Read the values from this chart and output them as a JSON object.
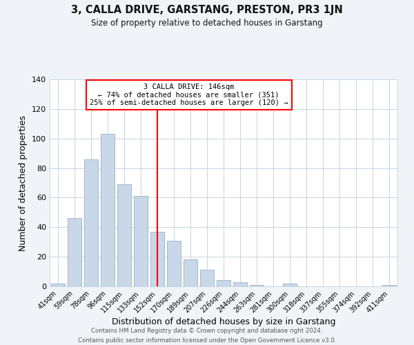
{
  "title": "3, CALLA DRIVE, GARSTANG, PRESTON, PR3 1JN",
  "subtitle": "Size of property relative to detached houses in Garstang",
  "xlabel": "Distribution of detached houses by size in Garstang",
  "ylabel": "Number of detached properties",
  "bar_labels": [
    "41sqm",
    "59sqm",
    "78sqm",
    "96sqm",
    "115sqm",
    "133sqm",
    "152sqm",
    "170sqm",
    "189sqm",
    "207sqm",
    "226sqm",
    "244sqm",
    "263sqm",
    "281sqm",
    "300sqm",
    "318sqm",
    "337sqm",
    "355sqm",
    "374sqm",
    "392sqm",
    "411sqm"
  ],
  "bar_values": [
    2,
    46,
    86,
    103,
    69,
    61,
    37,
    31,
    18,
    11,
    4,
    3,
    1,
    0,
    2,
    0,
    0,
    0,
    0,
    0,
    1
  ],
  "bar_color": "#c8d8e8",
  "bar_edge_color": "#a0b8cc",
  "vline_x_index": 6,
  "vline_color": "red",
  "annotation_title": "3 CALLA DRIVE: 146sqm",
  "annotation_line1": "← 74% of detached houses are smaller (351)",
  "annotation_line2": "25% of semi-detached houses are larger (120) →",
  "annotation_box_color": "white",
  "annotation_box_edge": "red",
  "ylim": [
    0,
    140
  ],
  "yticks": [
    0,
    20,
    40,
    60,
    80,
    100,
    120,
    140
  ],
  "footer1": "Contains HM Land Registry data © Crown copyright and database right 2024.",
  "footer2": "Contains public sector information licensed under the Open Government Licence v3.0.",
  "background_color": "#f0f4f8",
  "plot_background_color": "white",
  "grid_color": "#c8d4e0"
}
